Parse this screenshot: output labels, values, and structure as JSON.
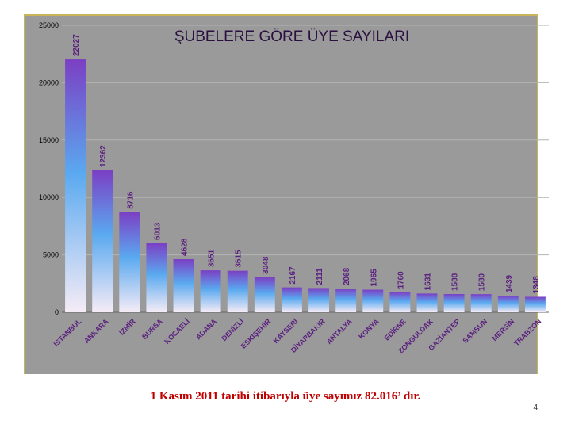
{
  "footer": {
    "note": "1 Kasım 2011 tarihi itibarıyla üye sayımız 82.016’ dır.",
    "page_number": "4"
  },
  "chart_data": {
    "type": "bar",
    "title": "ŞUBELERE GÖRE ÜYE SAYILARI",
    "xlabel": "",
    "ylabel": "",
    "ylim": [
      0,
      25000
    ],
    "yticks": [
      0,
      5000,
      10000,
      15000,
      20000,
      25000
    ],
    "grid": true,
    "legend": "none",
    "categories": [
      "İSTANBUL",
      "ANKARA",
      "İZMİR",
      "BURSA",
      "KOCAELİ",
      "ADANA",
      "DENİZLİ",
      "ESKİŞEHİR",
      "KAYSERİ",
      "DİYARBAKIR",
      "ANTALYA",
      "KONYA",
      "EDİRNE",
      "ZONGULDAK",
      "GAZİANTEP",
      "SAMSUN",
      "MERSİN",
      "TRABZON"
    ],
    "values": [
      22027,
      12362,
      8716,
      6013,
      4628,
      3651,
      3615,
      3048,
      2167,
      2111,
      2068,
      1965,
      1760,
      1631,
      1588,
      1580,
      1439,
      1348
    ],
    "colors": {
      "bar_top": "#7b3fc4",
      "bar_mid": "#5aa9f0",
      "bar_bottom": "#f6ecf6",
      "label": "#5a1f80",
      "title": "#2a1040",
      "plot_bg": "#9a9a9a",
      "grid": "#b4b4b4"
    }
  }
}
